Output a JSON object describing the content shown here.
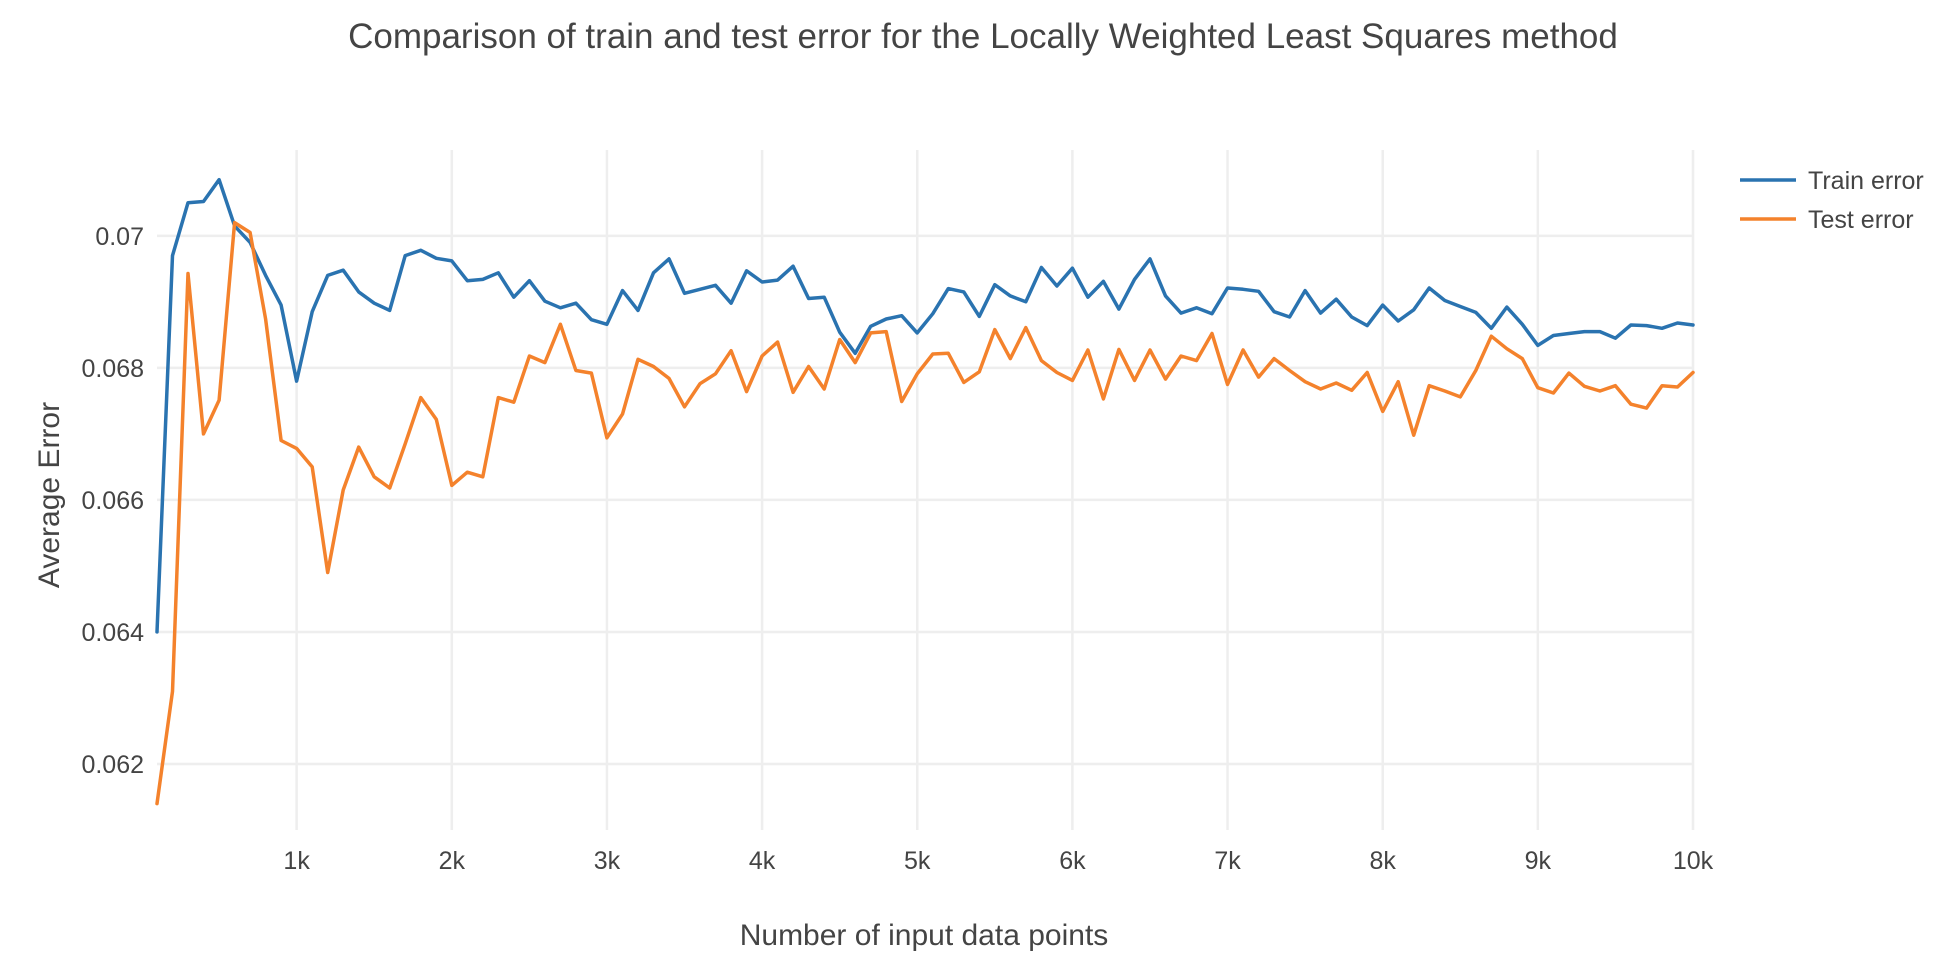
{
  "chart_data": {
    "type": "line",
    "title": "Comparison of train and test error for the Locally Weighted Least Squares method",
    "xlabel": "Number of input data points",
    "ylabel": "Average Error",
    "xlim": [
      100,
      10000
    ],
    "ylim": [
      0.061,
      0.0713
    ],
    "x_step": 100,
    "x_ticks": [
      1000,
      2000,
      3000,
      4000,
      5000,
      6000,
      7000,
      8000,
      9000,
      10000
    ],
    "x_tick_labels": [
      "1k",
      "2k",
      "3k",
      "4k",
      "5k",
      "6k",
      "7k",
      "8k",
      "9k",
      "10k"
    ],
    "y_ticks": [
      0.062,
      0.064,
      0.066,
      0.068,
      0.07
    ],
    "y_tick_labels": [
      "0.062",
      "0.064",
      "0.066",
      "0.068",
      "0.07"
    ],
    "grid": true,
    "legend_position": "top-right",
    "series": [
      {
        "name": "Train error",
        "color": "#2a73b0",
        "values": [
          0.064,
          0.0697,
          0.0705,
          0.07052,
          0.07085,
          0.07015,
          0.0699,
          0.0694,
          0.06895,
          0.0678,
          0.06885,
          0.0694,
          0.06948,
          0.06915,
          0.06898,
          0.06887,
          0.0697,
          0.06978,
          0.06966,
          0.06962,
          0.06932,
          0.06934,
          0.06944,
          0.06907,
          0.06932,
          0.06901,
          0.06891,
          0.06898,
          0.06873,
          0.06866,
          0.06917,
          0.06887,
          0.06944,
          0.06965,
          0.06913,
          0.06919,
          0.06925,
          0.06898,
          0.06947,
          0.0693,
          0.06933,
          0.06954,
          0.06905,
          0.06907,
          0.06854,
          0.06822,
          0.06863,
          0.06874,
          0.06879,
          0.06853,
          0.06882,
          0.0692,
          0.06915,
          0.06878,
          0.06926,
          0.06909,
          0.069,
          0.06952,
          0.06924,
          0.06951,
          0.06907,
          0.06931,
          0.06889,
          0.06934,
          0.06965,
          0.06909,
          0.06883,
          0.06891,
          0.06882,
          0.06921,
          0.06919,
          0.06916,
          0.06885,
          0.06877,
          0.06917,
          0.06883,
          0.06904,
          0.06877,
          0.06864,
          0.06895,
          0.06871,
          0.06888,
          0.06921,
          0.06902,
          0.06893,
          0.06884,
          0.0686,
          0.06892,
          0.06866,
          0.06834,
          0.06849,
          0.06852,
          0.06855,
          0.06855,
          0.06845,
          0.06865,
          0.06864,
          0.0686,
          0.06868,
          0.06865
        ]
      },
      {
        "name": "Test error",
        "color": "#f4822c",
        "values": [
          0.0614,
          0.0631,
          0.06943,
          0.067,
          0.06751,
          0.0702,
          0.07005,
          0.06874,
          0.0669,
          0.06678,
          0.0665,
          0.0649,
          0.06615,
          0.0668,
          0.06635,
          0.06618,
          0.06685,
          0.06755,
          0.06722,
          0.06622,
          0.06642,
          0.06635,
          0.06755,
          0.06748,
          0.06818,
          0.06808,
          0.06866,
          0.06796,
          0.06792,
          0.06694,
          0.0673,
          0.06813,
          0.06802,
          0.06784,
          0.06741,
          0.06776,
          0.06791,
          0.06826,
          0.06764,
          0.06818,
          0.06839,
          0.06763,
          0.06802,
          0.06768,
          0.06843,
          0.06808,
          0.06853,
          0.06855,
          0.06749,
          0.06791,
          0.06821,
          0.06822,
          0.06778,
          0.06794,
          0.06858,
          0.06814,
          0.06861,
          0.06811,
          0.06793,
          0.06781,
          0.06827,
          0.06753,
          0.06828,
          0.06781,
          0.06827,
          0.06783,
          0.06818,
          0.06811,
          0.06852,
          0.06775,
          0.06827,
          0.06786,
          0.06814,
          0.06796,
          0.06779,
          0.06768,
          0.06777,
          0.06766,
          0.06793,
          0.06734,
          0.06779,
          0.06698,
          0.06773,
          0.06765,
          0.06756,
          0.06796,
          0.06848,
          0.06829,
          0.06814,
          0.0677,
          0.06762,
          0.06792,
          0.06772,
          0.06765,
          0.06773,
          0.06745,
          0.06739,
          0.06773,
          0.06771,
          0.06793
        ]
      }
    ]
  }
}
